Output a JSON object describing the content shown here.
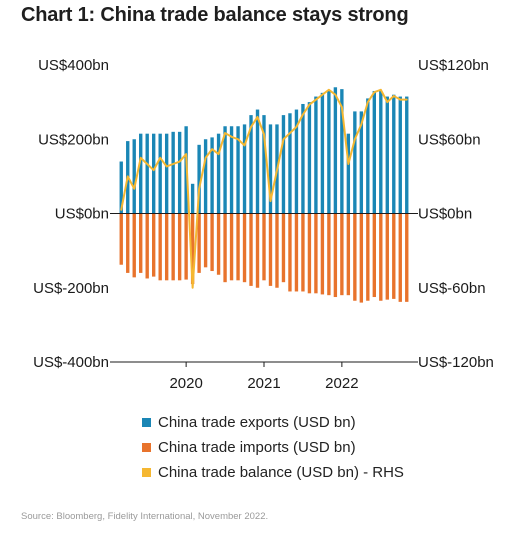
{
  "title": "Chart 1: China trade balance stays strong",
  "source": "Source: Bloomberg, Fidelity International, November 2022.",
  "colors": {
    "exports": "#1a86b5",
    "imports": "#e8732c",
    "balance": "#f5b731",
    "axis": "#1b1b1b",
    "text": "#1b1b1b"
  },
  "chart_data": {
    "type": "bar",
    "title": "Chart 1: China trade balance stays strong",
    "xlabel": "",
    "ylabel": "",
    "ylim": [
      -400,
      400
    ],
    "y2lim": [
      -120,
      120
    ],
    "y_ticks": [
      "US$400bn",
      "US$200bn",
      "US$0bn",
      "US$-200bn",
      "US$-400bn"
    ],
    "y2_ticks": [
      "US$120bn",
      "US$60bn",
      "US$0bn",
      "US$-60bn",
      "US$-120bn"
    ],
    "x_ticks": [
      "2020",
      "2021",
      "2022"
    ],
    "grid": false,
    "legend_position": "bottom",
    "categories": [
      "2019-03",
      "2019-04",
      "2019-05",
      "2019-06",
      "2019-07",
      "2019-08",
      "2019-09",
      "2019-10",
      "2019-11",
      "2019-12",
      "2020-01",
      "2020-02",
      "2020-03",
      "2020-04",
      "2020-05",
      "2020-06",
      "2020-07",
      "2020-08",
      "2020-09",
      "2020-10",
      "2020-11",
      "2020-12",
      "2021-01",
      "2021-02",
      "2021-03",
      "2021-04",
      "2021-05",
      "2021-06",
      "2021-07",
      "2021-08",
      "2021-09",
      "2021-10",
      "2021-11",
      "2021-12",
      "2022-01",
      "2022-02",
      "2022-03",
      "2022-04",
      "2022-05",
      "2022-06",
      "2022-07",
      "2022-08",
      "2022-09",
      "2022-10",
      "2022-11"
    ],
    "series": [
      {
        "name": "China trade exports (USD bn)",
        "axis": "left",
        "type": "bar",
        "values": [
          140,
          195,
          200,
          215,
          215,
          215,
          215,
          215,
          220,
          220,
          235,
          80,
          185,
          200,
          205,
          215,
          235,
          235,
          235,
          240,
          265,
          280,
          265,
          240,
          240,
          265,
          270,
          280,
          295,
          300,
          315,
          325,
          330,
          340,
          335,
          215,
          275,
          275,
          310,
          330,
          330,
          315,
          320,
          315,
          315
        ]
      },
      {
        "name": "China trade imports (USD bn)",
        "axis": "left",
        "type": "bar",
        "values": [
          -138,
          -160,
          -172,
          -160,
          -175,
          -170,
          -180,
          -180,
          -180,
          -180,
          -178,
          -190,
          -160,
          -145,
          -155,
          -165,
          -185,
          -180,
          -180,
          -185,
          -195,
          -200,
          -180,
          -195,
          -200,
          -185,
          -210,
          -210,
          -210,
          -215,
          -215,
          -218,
          -220,
          -225,
          -220,
          -220,
          -235,
          -240,
          -235,
          -225,
          -235,
          -232,
          -230,
          -238,
          -238
        ]
      },
      {
        "name": "China trade balance (USD bn) - RHS",
        "axis": "right",
        "type": "line",
        "values": [
          3,
          30,
          20,
          45,
          40,
          35,
          45,
          38,
          40,
          42,
          48,
          -60,
          20,
          45,
          52,
          48,
          65,
          62,
          60,
          55,
          70,
          78,
          64,
          10,
          35,
          60,
          65,
          70,
          80,
          88,
          92,
          96,
          100,
          96,
          86,
          40,
          60,
          72,
          90,
          98,
          100,
          90,
          95,
          92,
          92
        ]
      }
    ]
  }
}
